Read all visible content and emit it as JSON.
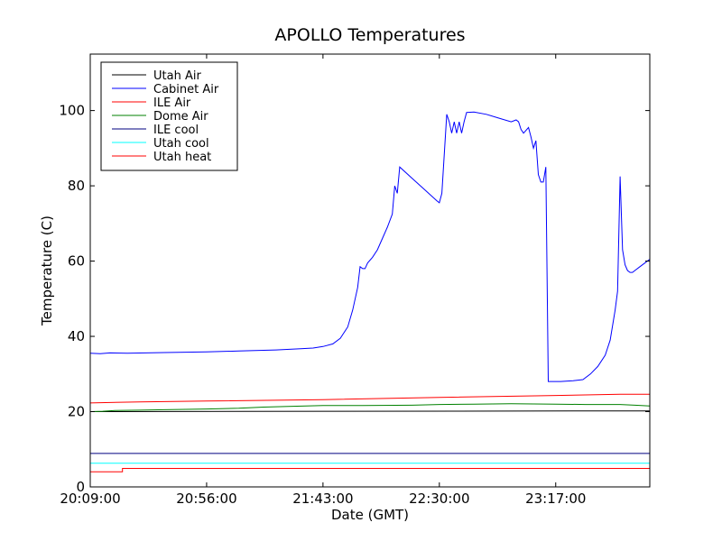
{
  "chart_data": {
    "type": "line",
    "title": "APOLLO Temperatures",
    "xlabel": "Date (GMT)",
    "ylabel": "Temperature (C)",
    "xlim": [
      0,
      226
    ],
    "ylim": [
      0,
      115
    ],
    "x_unit": "minutes after 20:09:00",
    "x_ticks": [
      {
        "value": 0,
        "label": "20:09:00"
      },
      {
        "value": 47,
        "label": "20:56:00"
      },
      {
        "value": 94,
        "label": "21:43:00"
      },
      {
        "value": 141,
        "label": "22:30:00"
      },
      {
        "value": 188,
        "label": "23:17:00"
      }
    ],
    "y_ticks": [
      0,
      20,
      40,
      60,
      80,
      100
    ],
    "legend_position": "top-left",
    "series": [
      {
        "name": "Utah Air",
        "color": "#000000",
        "points": [
          [
            0,
            20.0
          ],
          [
            226,
            20.2
          ]
        ]
      },
      {
        "name": "Cabinet Air",
        "color": "#0000ff",
        "points": [
          [
            0,
            35.5
          ],
          [
            4,
            35.4
          ],
          [
            8,
            35.6
          ],
          [
            15,
            35.5
          ],
          [
            30,
            35.7
          ],
          [
            47,
            35.9
          ],
          [
            60,
            36.1
          ],
          [
            75,
            36.4
          ],
          [
            85,
            36.7
          ],
          [
            90,
            36.9
          ],
          [
            94,
            37.3
          ],
          [
            98,
            38.0
          ],
          [
            101,
            39.5
          ],
          [
            104,
            42.5
          ],
          [
            106,
            47
          ],
          [
            108,
            53
          ],
          [
            109,
            58.5
          ],
          [
            110,
            58
          ],
          [
            111,
            58
          ],
          [
            112,
            59.5
          ],
          [
            114,
            61
          ],
          [
            116,
            63
          ],
          [
            118,
            66
          ],
          [
            120,
            69
          ],
          [
            122,
            72.5
          ],
          [
            123,
            80
          ],
          [
            124,
            78
          ],
          [
            125,
            85
          ],
          [
            130,
            82
          ],
          [
            135,
            79
          ],
          [
            140,
            76
          ],
          [
            141,
            75.5
          ],
          [
            142,
            78
          ],
          [
            144,
            99
          ],
          [
            145,
            97
          ],
          [
            146,
            94
          ],
          [
            147,
            97
          ],
          [
            148,
            94
          ],
          [
            149,
            97
          ],
          [
            150,
            94
          ],
          [
            151,
            97
          ],
          [
            152,
            99.5
          ],
          [
            155,
            99.6
          ],
          [
            160,
            99
          ],
          [
            165,
            98
          ],
          [
            170,
            97
          ],
          [
            172,
            97.5
          ],
          [
            173,
            97
          ],
          [
            174,
            95
          ],
          [
            175,
            94
          ],
          [
            177,
            95.5
          ],
          [
            178,
            93
          ],
          [
            179,
            90
          ],
          [
            180,
            92
          ],
          [
            181,
            83
          ],
          [
            182,
            81
          ],
          [
            183,
            81
          ],
          [
            184,
            85
          ],
          [
            185,
            28
          ],
          [
            190,
            28
          ],
          [
            195,
            28.2
          ],
          [
            199,
            28.5
          ],
          [
            202,
            30
          ],
          [
            205,
            32
          ],
          [
            208,
            35
          ],
          [
            210,
            39
          ],
          [
            212,
            47
          ],
          [
            213,
            52
          ],
          [
            214,
            82.5
          ],
          [
            215,
            63
          ],
          [
            216,
            59
          ],
          [
            217,
            57.5
          ],
          [
            218,
            57
          ],
          [
            219,
            57
          ],
          [
            220,
            57.5
          ],
          [
            222,
            58.5
          ],
          [
            224,
            59.5
          ],
          [
            226,
            60.5
          ]
        ]
      },
      {
        "name": "ILE Air",
        "color": "#ff0000",
        "points": [
          [
            0,
            22.3
          ],
          [
            20,
            22.6
          ],
          [
            47,
            22.8
          ],
          [
            94,
            23.2
          ],
          [
            141,
            23.8
          ],
          [
            188,
            24.3
          ],
          [
            214,
            24.6
          ],
          [
            226,
            24.6
          ]
        ]
      },
      {
        "name": "Dome Air",
        "color": "#008000",
        "points": [
          [
            0,
            20.0
          ],
          [
            5,
            20.1
          ],
          [
            10,
            20.3
          ],
          [
            20,
            20.4
          ],
          [
            30,
            20.5
          ],
          [
            47,
            20.7
          ],
          [
            60,
            20.9
          ],
          [
            70,
            21.2
          ],
          [
            80,
            21.4
          ],
          [
            94,
            21.6
          ],
          [
            110,
            21.6
          ],
          [
            130,
            21.7
          ],
          [
            141,
            21.9
          ],
          [
            155,
            22.0
          ],
          [
            170,
            22.1
          ],
          [
            188,
            22.0
          ],
          [
            200,
            21.9
          ],
          [
            214,
            21.9
          ],
          [
            220,
            21.7
          ],
          [
            226,
            21.5
          ]
        ]
      },
      {
        "name": "ILE cool",
        "color": "#000080",
        "points": [
          [
            0,
            8.9
          ],
          [
            226,
            8.9
          ]
        ]
      },
      {
        "name": "Utah cool",
        "color": "#00ffff",
        "points": [
          [
            0,
            6.3
          ],
          [
            226,
            6.3
          ]
        ]
      },
      {
        "name": "Utah heat",
        "color": "#ff0000",
        "points": [
          [
            0,
            4.0
          ],
          [
            13,
            4.0
          ],
          [
            13,
            4.9
          ],
          [
            226,
            4.9
          ]
        ]
      }
    ]
  }
}
